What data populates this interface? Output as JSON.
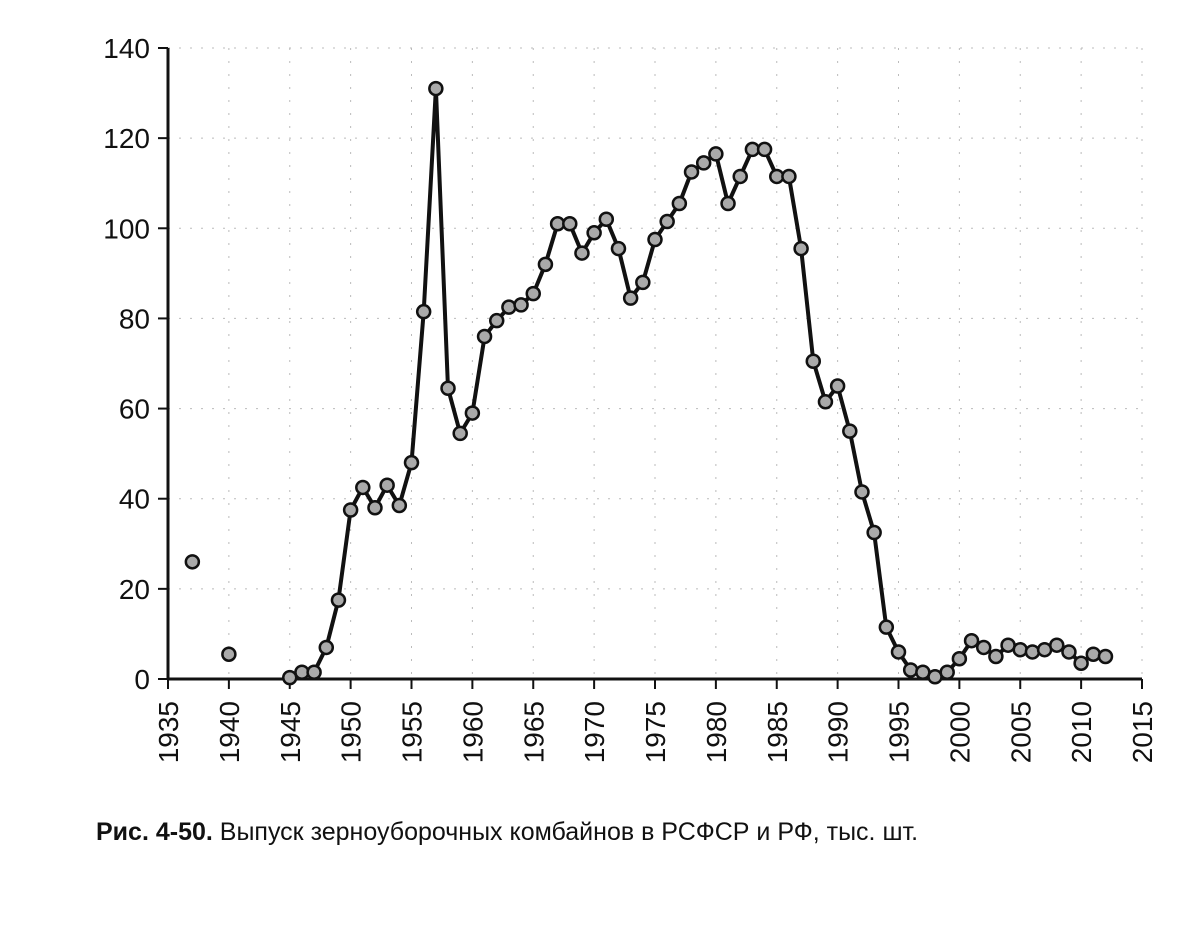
{
  "caption": {
    "number": "Рис. 4-50.",
    "text": "Выпуск зерноуборочных комбайнов в РСФСР и РФ, тыс. шт."
  },
  "chart_data": {
    "type": "line",
    "title": "",
    "xlabel": "",
    "ylabel": "",
    "xlim": [
      1935,
      2015
    ],
    "ylim": [
      0,
      140
    ],
    "x_ticks": [
      "1935",
      "1940",
      "1945",
      "1950",
      "1955",
      "1960",
      "1965",
      "1970",
      "1975",
      "1980",
      "1985",
      "1990",
      "1995",
      "2000",
      "2005",
      "2010",
      "2015"
    ],
    "y_ticks": [
      "0",
      "20",
      "40",
      "60",
      "80",
      "100",
      "120",
      "140"
    ],
    "grid": "dotted",
    "line_color": "#111111",
    "marker_color": "#aaaaaa",
    "isolated_points": [
      {
        "x": 1937,
        "y": 26
      },
      {
        "x": 1940,
        "y": 5.5
      }
    ],
    "series": [
      {
        "x": [
          1945,
          1946,
          1947,
          1948,
          1949,
          1950,
          1951,
          1952,
          1953,
          1954,
          1955,
          1956,
          1957,
          1958,
          1959,
          1960,
          1961,
          1962,
          1963,
          1964,
          1965,
          1966,
          1967,
          1968,
          1969,
          1970,
          1971,
          1972,
          1973,
          1974,
          1975,
          1976,
          1977,
          1978,
          1979,
          1980,
          1981,
          1982,
          1983,
          1984,
          1985,
          1986,
          1987,
          1988,
          1989,
          1990,
          1991,
          1992,
          1993,
          1994,
          1995,
          1996,
          1997,
          1998,
          1999,
          2000,
          2001,
          2002,
          2003,
          2004,
          2005,
          2006,
          2007,
          2008,
          2009,
          2010,
          2011,
          2012
        ],
        "values": [
          0.3,
          1.5,
          1.5,
          7,
          17.5,
          37.5,
          42.5,
          38,
          43,
          38.5,
          48,
          81.5,
          131,
          64.5,
          54.5,
          59,
          76,
          79.5,
          82.5,
          83,
          85.5,
          92,
          101,
          101,
          94.5,
          99,
          102,
          95.5,
          84.5,
          88,
          97.5,
          101.5,
          105.5,
          112.5,
          114.5,
          116.5,
          105.5,
          111.5,
          117.5,
          117.5,
          111.5,
          111.5,
          95.5,
          70.5,
          61.5,
          65,
          55,
          41.5,
          32.5,
          11.5,
          6,
          2,
          1.5,
          0.5,
          1.5,
          4.5,
          8.5,
          7,
          5,
          7.5,
          6.5,
          6,
          6.5,
          7.5,
          6,
          3.5,
          5.5,
          5
        ]
      }
    ]
  }
}
